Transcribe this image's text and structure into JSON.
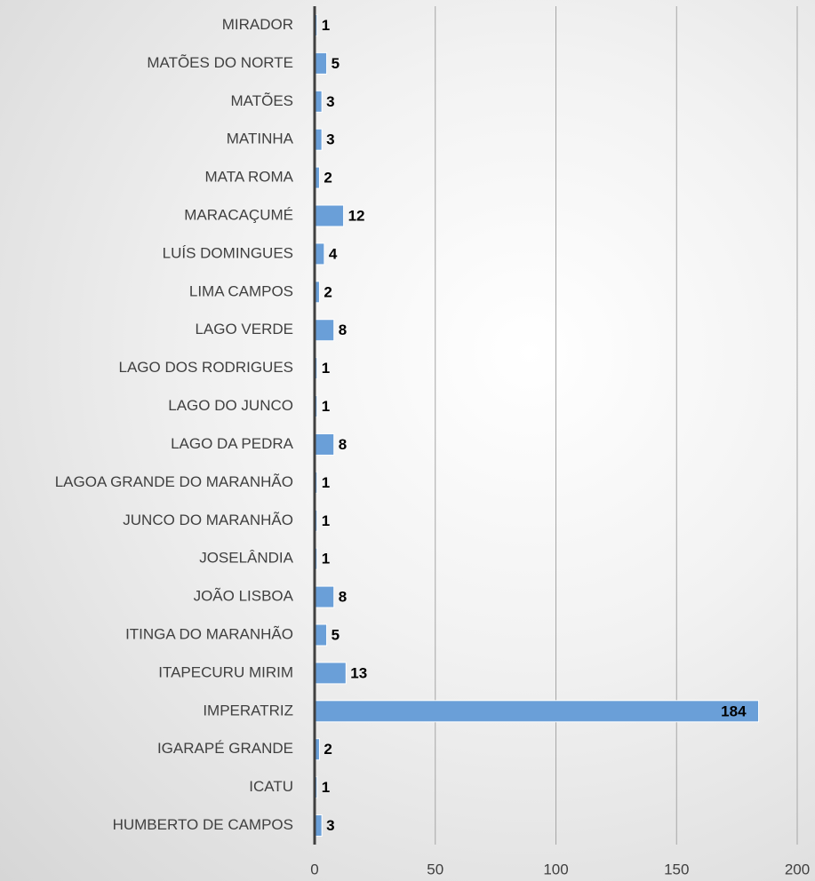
{
  "chart_data": {
    "type": "bar",
    "orientation": "horizontal",
    "categories": [
      "MIRADOR",
      "MATÕES DO NORTE",
      "MATÕES",
      "MATINHA",
      "MATA ROMA",
      "MARACAÇUMÉ",
      "LUÍS DOMINGUES",
      "LIMA CAMPOS",
      "LAGO VERDE",
      "LAGO DOS RODRIGUES",
      "LAGO DO JUNCO",
      "LAGO DA PEDRA",
      "LAGOA GRANDE DO MARANHÃO",
      "JUNCO DO MARANHÃO",
      "JOSELÂNDIA",
      "JOÃO LISBOA",
      "ITINGA DO MARANHÃO",
      "ITAPECURU MIRIM",
      "IMPERATRIZ",
      "IGARAPÉ GRANDE",
      "ICATU",
      "HUMBERTO DE CAMPOS"
    ],
    "values": [
      1,
      5,
      3,
      3,
      2,
      12,
      4,
      2,
      8,
      1,
      1,
      8,
      1,
      1,
      1,
      8,
      5,
      13,
      184,
      2,
      1,
      3
    ],
    "color": "#6a9fd8",
    "xlim": [
      0,
      200
    ],
    "xticks": [
      0,
      50,
      100,
      150,
      200
    ],
    "grid": true
  }
}
